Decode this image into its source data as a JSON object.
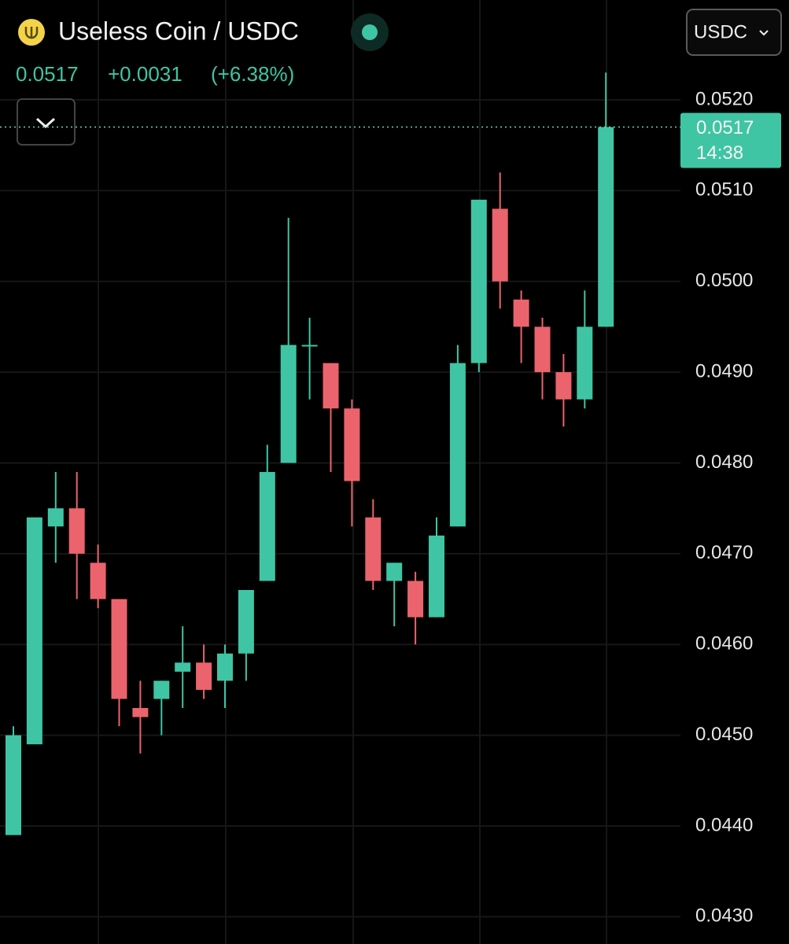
{
  "header": {
    "pair": "Useless Coin / USDC",
    "price": "0.0517",
    "change": "+0.0031",
    "change_pct": "(+6.38%)",
    "quote_selector": "USDC"
  },
  "chart_data": {
    "type": "candlestick",
    "open": [
      0.0439,
      0.0449,
      0.0473,
      0.0475,
      0.0469,
      0.0465,
      0.0453,
      0.0454,
      0.0457,
      0.0458,
      0.0456,
      0.0459,
      0.0467,
      0.048,
      0.0493,
      0.0491,
      0.0486,
      0.0474,
      0.0467,
      0.0467,
      0.0463,
      0.0473,
      0.0491,
      0.0508,
      0.0498,
      0.0495,
      0.049,
      0.0487,
      0.0495
    ],
    "high": [
      0.0451,
      0.0474,
      0.0479,
      0.0479,
      0.0471,
      0.0465,
      0.0456,
      0.0456,
      0.0462,
      0.046,
      0.046,
      0.0466,
      0.0482,
      0.0507,
      0.0496,
      0.0491,
      0.0487,
      0.0476,
      0.0469,
      0.0468,
      0.0474,
      0.0493,
      0.0509,
      0.0512,
      0.0499,
      0.0496,
      0.0492,
      0.0499,
      0.0523
    ],
    "low": [
      0.0439,
      0.0449,
      0.0469,
      0.0465,
      0.0464,
      0.0451,
      0.0448,
      0.045,
      0.0453,
      0.0454,
      0.0453,
      0.0456,
      0.0467,
      0.048,
      0.0487,
      0.0479,
      0.0473,
      0.0466,
      0.0462,
      0.046,
      0.0463,
      0.0473,
      0.049,
      0.0497,
      0.0491,
      0.0487,
      0.0484,
      0.0486,
      0.0495
    ],
    "close": [
      0.045,
      0.0474,
      0.0475,
      0.047,
      0.0465,
      0.0454,
      0.0452,
      0.0456,
      0.0458,
      0.0455,
      0.0459,
      0.0466,
      0.0479,
      0.0493,
      0.0493,
      0.0486,
      0.0478,
      0.0467,
      0.0469,
      0.0463,
      0.0472,
      0.0491,
      0.0509,
      0.05,
      0.0495,
      0.049,
      0.0487,
      0.0495,
      0.0517
    ],
    "up_color": "#3fc5a4",
    "down_color": "#eb636c",
    "ylim": [
      0.0427,
      0.0531
    ],
    "yticks": [
      {
        "value": 0.052,
        "label": "0.0520"
      },
      {
        "value": 0.051,
        "label": "0.0510"
      },
      {
        "value": 0.05,
        "label": "0.0500"
      },
      {
        "value": 0.049,
        "label": "0.0490"
      },
      {
        "value": 0.048,
        "label": "0.0480"
      },
      {
        "value": 0.047,
        "label": "0.0470"
      },
      {
        "value": 0.046,
        "label": "0.0460"
      },
      {
        "value": 0.045,
        "label": "0.0450"
      },
      {
        "value": 0.044,
        "label": "0.0440"
      },
      {
        "value": 0.043,
        "label": "0.0430"
      }
    ],
    "grid": true,
    "price_line": {
      "value": 0.0517,
      "label": "0.0517"
    },
    "countdown": "14:38"
  }
}
